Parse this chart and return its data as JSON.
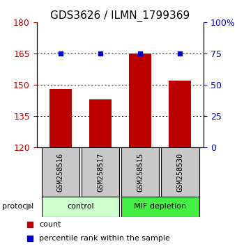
{
  "title": "GDS3626 / ILMN_1799369",
  "samples": [
    "GSM258516",
    "GSM258517",
    "GSM258515",
    "GSM258530"
  ],
  "bar_values": [
    148,
    143,
    165,
    152
  ],
  "percentile_values": [
    75,
    75,
    75,
    75
  ],
  "ylim_left": [
    120,
    180
  ],
  "ylim_right": [
    0,
    100
  ],
  "yticks_left": [
    120,
    135,
    150,
    165,
    180
  ],
  "yticks_right": [
    0,
    25,
    50,
    75,
    100
  ],
  "ytick_labels_right": [
    "0",
    "25",
    "50",
    "75",
    "100%"
  ],
  "bar_color": "#bb0000",
  "dot_color": "#0000cc",
  "bar_bottom": 120,
  "groups": [
    {
      "label": "control",
      "indices": [
        0,
        1
      ],
      "color": "#ccffcc"
    },
    {
      "label": "MIF depletion",
      "indices": [
        2,
        3
      ],
      "color": "#44ee44"
    }
  ],
  "protocol_label": "protocol",
  "legend_items": [
    {
      "label": "count",
      "color": "#bb0000"
    },
    {
      "label": "percentile rank within the sample",
      "color": "#0000cc"
    }
  ],
  "grid_color": "black",
  "background_color": "#ffffff",
  "sample_box_color": "#c8c8c8",
  "title_fontsize": 11,
  "tick_fontsize": 9,
  "bar_width": 0.55
}
